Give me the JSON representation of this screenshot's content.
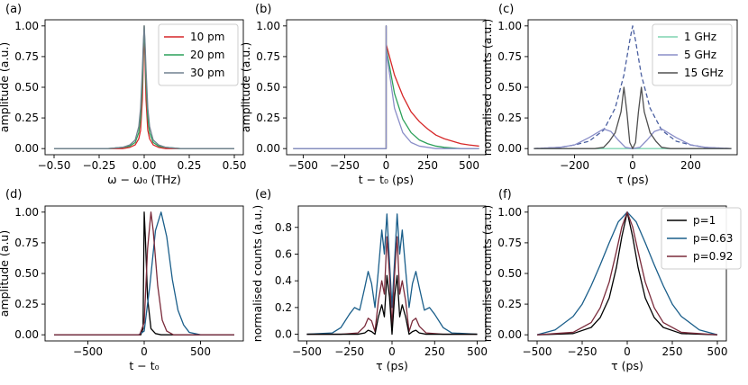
{
  "chart_data": [
    {
      "panel": "(a)",
      "type": "line",
      "xlabel": "ω − ω₀ (THz)",
      "ylabel": "amplitude (a.u.)",
      "xlim": [
        -0.55,
        0.55
      ],
      "ylim": [
        -0.05,
        1.05
      ],
      "xticks": [
        "−0.50",
        "−0.25",
        "0.00",
        "0.25",
        "0.50"
      ],
      "yticks": [
        "0.00",
        "0.25",
        "0.50",
        "0.75",
        "1.00"
      ],
      "legend_position": "top-right",
      "series": [
        {
          "name": "10 pm",
          "color": "#d62728",
          "x": [
            -0.5,
            -0.3,
            -0.2,
            -0.12,
            -0.08,
            -0.05,
            -0.03,
            -0.02,
            -0.01,
            -0.005,
            0,
            0.005,
            0.01,
            0.02,
            0.03,
            0.05,
            0.08,
            0.12,
            0.2,
            0.3,
            0.5
          ],
          "y": [
            0,
            0,
            0,
            0,
            0.01,
            0.03,
            0.08,
            0.15,
            0.4,
            0.7,
            1.0,
            0.7,
            0.4,
            0.15,
            0.08,
            0.03,
            0.01,
            0,
            0,
            0,
            0
          ]
        },
        {
          "name": "20 pm",
          "color": "#2ca05a",
          "x": [
            -0.5,
            -0.3,
            -0.2,
            -0.12,
            -0.08,
            -0.05,
            -0.03,
            -0.02,
            -0.01,
            -0.005,
            0,
            0.005,
            0.01,
            0.02,
            0.03,
            0.05,
            0.08,
            0.12,
            0.2,
            0.3,
            0.5
          ],
          "y": [
            0,
            0,
            0,
            0.01,
            0.02,
            0.05,
            0.13,
            0.25,
            0.55,
            0.8,
            1.0,
            0.8,
            0.55,
            0.25,
            0.13,
            0.05,
            0.02,
            0.01,
            0,
            0,
            0
          ]
        },
        {
          "name": "30 pm",
          "color": "#708090",
          "x": [
            -0.5,
            -0.3,
            -0.2,
            -0.12,
            -0.08,
            -0.05,
            -0.03,
            -0.02,
            -0.01,
            -0.005,
            0,
            0.005,
            0.01,
            0.02,
            0.03,
            0.05,
            0.08,
            0.12,
            0.2,
            0.3,
            0.5
          ],
          "y": [
            0,
            0,
            0,
            0.01,
            0.03,
            0.07,
            0.18,
            0.33,
            0.65,
            0.85,
            1.0,
            0.85,
            0.65,
            0.33,
            0.18,
            0.07,
            0.03,
            0.01,
            0,
            0,
            0
          ]
        }
      ]
    },
    {
      "panel": "(b)",
      "type": "line",
      "xlabel": "t − t₀ (ps)",
      "ylabel": "amplitude (a.u.)",
      "xlim": [
        -600,
        600
      ],
      "ylim": [
        -0.05,
        1.05
      ],
      "xticks": [
        "−500",
        "−250",
        "0",
        "250",
        "500"
      ],
      "yticks": [
        "0.00",
        "0.25",
        "0.50",
        "0.75",
        "1.00"
      ],
      "series": [
        {
          "name": "10 pm",
          "color": "#d62728",
          "x": [
            -560,
            -0.1,
            0,
            0.1,
            50,
            100,
            150,
            200,
            250,
            300,
            350,
            400,
            450,
            500,
            560
          ],
          "y": [
            0,
            0,
            1.0,
            0.85,
            0.6,
            0.43,
            0.3,
            0.22,
            0.16,
            0.11,
            0.08,
            0.06,
            0.04,
            0.03,
            0.02
          ]
        },
        {
          "name": "20 pm",
          "color": "#2ca05a",
          "x": [
            -560,
            -0.1,
            0,
            0.1,
            50,
            100,
            150,
            200,
            250,
            300,
            350,
            400,
            450,
            500,
            560
          ],
          "y": [
            0,
            0,
            1.0,
            0.82,
            0.45,
            0.24,
            0.13,
            0.07,
            0.04,
            0.02,
            0.01,
            0.005,
            0,
            0,
            0
          ]
        },
        {
          "name": "30 pm",
          "color": "#8a8ec8",
          "x": [
            -560,
            -0.1,
            0,
            0.1,
            50,
            100,
            150,
            200,
            250,
            300,
            350,
            400,
            450,
            500,
            560
          ],
          "y": [
            0,
            0,
            1.0,
            0.8,
            0.33,
            0.13,
            0.05,
            0.02,
            0.01,
            0,
            0,
            0,
            0,
            0,
            0
          ]
        }
      ]
    },
    {
      "panel": "(c)",
      "type": "line",
      "xlabel": "τ (ps)",
      "ylabel": "normalised counts (a.u.)",
      "xlim": [
        -360,
        360
      ],
      "ylim": [
        -0.05,
        1.05
      ],
      "xticks": [
        "−200",
        "0",
        "200"
      ],
      "yticks": [
        "0.00",
        "0.25",
        "0.50",
        "0.75",
        "1.00"
      ],
      "legend_position": "top-right",
      "series": [
        {
          "name": "",
          "style": "dashed",
          "color": "#4a5fa0",
          "x": [
            -340,
            -250,
            -200,
            -150,
            -100,
            -60,
            -30,
            -10,
            0,
            10,
            30,
            60,
            100,
            150,
            200,
            250,
            340
          ],
          "y": [
            0,
            0.01,
            0.03,
            0.06,
            0.15,
            0.33,
            0.6,
            0.88,
            1.0,
            0.88,
            0.6,
            0.33,
            0.15,
            0.06,
            0.03,
            0.01,
            0
          ]
        },
        {
          "name": "1 GHz",
          "color": "#7fd3b0",
          "x": [
            -340,
            -250,
            -150,
            -60,
            -10,
            0,
            10,
            60,
            150,
            250,
            340
          ],
          "y": [
            0,
            0,
            0,
            0,
            0,
            0,
            0,
            0,
            0,
            0,
            0
          ]
        },
        {
          "name": "5 GHz",
          "color": "#8a8ec8",
          "x": [
            -340,
            -250,
            -200,
            -150,
            -100,
            -75,
            -50,
            -25,
            0,
            25,
            50,
            75,
            100,
            150,
            200,
            250,
            340
          ],
          "y": [
            0,
            0.01,
            0.03,
            0.09,
            0.16,
            0.14,
            0.07,
            0.01,
            0,
            0.01,
            0.07,
            0.14,
            0.16,
            0.09,
            0.03,
            0.01,
            0
          ]
        },
        {
          "name": "15 GHz",
          "color": "#505050",
          "x": [
            -340,
            -200,
            -130,
            -100,
            -80,
            -60,
            -40,
            -30,
            -20,
            -10,
            0,
            10,
            20,
            30,
            40,
            60,
            80,
            100,
            130,
            200,
            340
          ],
          "y": [
            0,
            0,
            0,
            0.01,
            0.06,
            0.13,
            0.3,
            0.5,
            0.3,
            0.05,
            0,
            0.05,
            0.3,
            0.5,
            0.3,
            0.13,
            0.06,
            0.01,
            0,
            0,
            0
          ]
        }
      ]
    },
    {
      "panel": "(d)",
      "type": "line",
      "xlabel": "t − t₀",
      "ylabel": "amplitude (a.u)",
      "xlim": [
        -880,
        880
      ],
      "ylim": [
        -0.05,
        1.05
      ],
      "xticks": [
        "−500",
        "0",
        "500"
      ],
      "yticks": [
        "0.00",
        "0.25",
        "0.50",
        "0.75",
        "1.00"
      ],
      "series": [
        {
          "name": "p=1",
          "color": "#000000",
          "x": [
            -800,
            -30,
            -10,
            0,
            10,
            30,
            60,
            100,
            150,
            200,
            800
          ],
          "y": [
            0,
            0,
            0.05,
            1.0,
            0.8,
            0.3,
            0.05,
            0.01,
            0,
            0,
            0
          ]
        },
        {
          "name": "p=0.63",
          "color": "#1a5e8a",
          "x": [
            -800,
            -50,
            0,
            50,
            100,
            150,
            200,
            250,
            300,
            350,
            400,
            500,
            800
          ],
          "y": [
            0,
            0,
            0.03,
            0.4,
            0.85,
            1.0,
            0.8,
            0.45,
            0.2,
            0.08,
            0.02,
            0,
            0
          ]
        },
        {
          "name": "p=0.92",
          "color": "#7a2a3a",
          "x": [
            -800,
            -40,
            0,
            30,
            60,
            80,
            120,
            160,
            200,
            260,
            800
          ],
          "y": [
            0,
            0,
            0.1,
            0.7,
            1.0,
            0.85,
            0.4,
            0.12,
            0.03,
            0,
            0
          ]
        }
      ]
    },
    {
      "panel": "(e)",
      "type": "line",
      "xlabel": "τ (ps)",
      "ylabel": "normalised counts (a.u.)",
      "xlim": [
        -550,
        550
      ],
      "ylim": [
        -0.05,
        0.96
      ],
      "xticks": [
        "−500",
        "−250",
        "0",
        "250",
        "500"
      ],
      "yticks": [
        "0.0",
        "0.2",
        "0.4",
        "0.6",
        "0.8"
      ],
      "series": [
        {
          "name": "p=0.63",
          "color": "#1a5e8a",
          "x": [
            -500,
            -350,
            -300,
            -250,
            -220,
            -190,
            -160,
            -140,
            -120,
            -100,
            -80,
            -60,
            -45,
            -30,
            -15,
            0,
            15,
            30,
            45,
            60,
            80,
            100,
            120,
            140,
            160,
            190,
            220,
            250,
            300,
            350,
            500
          ],
          "y": [
            0,
            0.01,
            0.05,
            0.15,
            0.2,
            0.18,
            0.35,
            0.47,
            0.38,
            0.2,
            0.48,
            0.78,
            0.6,
            0.9,
            0.55,
            0.2,
            0.55,
            0.9,
            0.6,
            0.78,
            0.48,
            0.2,
            0.38,
            0.47,
            0.35,
            0.18,
            0.2,
            0.15,
            0.05,
            0.01,
            0
          ]
        },
        {
          "name": "p=0.92",
          "color": "#7a2a3a",
          "x": [
            -500,
            -300,
            -200,
            -160,
            -140,
            -120,
            -100,
            -80,
            -60,
            -45,
            -30,
            -15,
            0,
            15,
            30,
            45,
            60,
            80,
            100,
            120,
            140,
            160,
            200,
            300,
            500
          ],
          "y": [
            0,
            0,
            0.01,
            0.06,
            0.12,
            0.1,
            0.02,
            0.25,
            0.4,
            0.3,
            0.73,
            0.45,
            0.05,
            0.45,
            0.73,
            0.3,
            0.4,
            0.25,
            0.02,
            0.1,
            0.12,
            0.06,
            0.01,
            0,
            0
          ]
        },
        {
          "name": "p=1",
          "color": "#000000",
          "x": [
            -500,
            -300,
            -200,
            -160,
            -140,
            -120,
            -100,
            -80,
            -60,
            -45,
            -30,
            -15,
            0,
            15,
            30,
            45,
            60,
            80,
            100,
            120,
            140,
            160,
            200,
            300,
            500
          ],
          "y": [
            0,
            0,
            0,
            0.01,
            0.03,
            0.02,
            0,
            0.13,
            0.22,
            0.13,
            0.44,
            0.28,
            0,
            0.28,
            0.44,
            0.13,
            0.22,
            0.13,
            0,
            0.02,
            0.03,
            0.01,
            0,
            0,
            0
          ]
        }
      ]
    },
    {
      "panel": "(f)",
      "type": "line",
      "xlabel": "τ (ps)",
      "ylabel": "normalised counts (a.u.)",
      "xlim": [
        -550,
        550
      ],
      "ylim": [
        -0.05,
        1.05
      ],
      "xticks": [
        "−500",
        "−250",
        "0",
        "250",
        "500"
      ],
      "yticks": [
        "0.00",
        "0.25",
        "0.50",
        "0.75",
        "1.00"
      ],
      "legend_position": "top-right",
      "series": [
        {
          "name": "p=1",
          "color": "#000000",
          "x": [
            -500,
            -300,
            -200,
            -150,
            -100,
            -60,
            -30,
            0,
            30,
            60,
            100,
            150,
            200,
            300,
            500
          ],
          "y": [
            0,
            0.01,
            0.06,
            0.14,
            0.3,
            0.55,
            0.8,
            1.0,
            0.8,
            0.55,
            0.3,
            0.14,
            0.06,
            0.01,
            0
          ]
        },
        {
          "name": "p=0.63",
          "color": "#1a5e8a",
          "x": [
            -500,
            -400,
            -300,
            -250,
            -200,
            -150,
            -100,
            -50,
            0,
            50,
            100,
            150,
            200,
            250,
            300,
            400,
            500
          ],
          "y": [
            0,
            0.04,
            0.15,
            0.25,
            0.4,
            0.57,
            0.75,
            0.92,
            1.0,
            0.92,
            0.75,
            0.57,
            0.4,
            0.25,
            0.15,
            0.04,
            0
          ]
        },
        {
          "name": "p=0.92",
          "color": "#7a2a3a",
          "x": [
            -500,
            -300,
            -200,
            -150,
            -100,
            -60,
            -30,
            0,
            30,
            60,
            100,
            150,
            200,
            300,
            500
          ],
          "y": [
            0,
            0.02,
            0.1,
            0.22,
            0.43,
            0.68,
            0.88,
            1.0,
            0.88,
            0.68,
            0.43,
            0.22,
            0.1,
            0.02,
            0
          ]
        }
      ]
    }
  ]
}
